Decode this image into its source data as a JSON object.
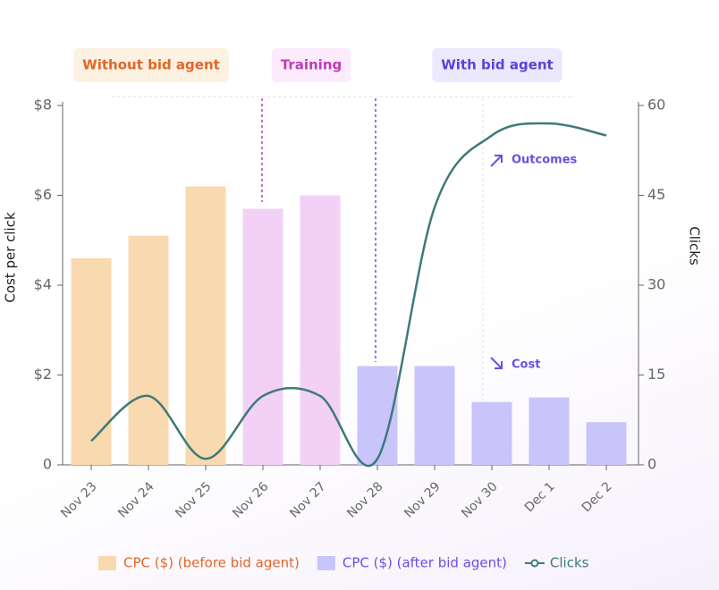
{
  "chart_data": {
    "type": "bar_line",
    "categories": [
      "Nov 23",
      "Nov 24",
      "Nov 25",
      "Nov 26",
      "Nov 27",
      "Nov 28",
      "Nov 29",
      "Nov 30",
      "Dec 1",
      "Dec 2"
    ],
    "phases": [
      {
        "label": "Without bid agent",
        "start": 0,
        "end": 2,
        "color": "#f8d9b0",
        "text_color": "#e0672a",
        "background": "#fdf1e1"
      },
      {
        "label": "Training",
        "start": 3,
        "end": 4,
        "color": "#f3d1f6",
        "text_color": "#c13bb5",
        "background": "#fcebfd"
      },
      {
        "label": "With bid agent",
        "start": 5,
        "end": 9,
        "color": "#c9c5fa",
        "text_color": "#5b43d6",
        "background": "#ebe9fd"
      }
    ],
    "series": [
      {
        "name": "CPC ($) (before bid agent)",
        "color": "#f8d9b0",
        "text_color": "#e0672a",
        "values": [
          4.6,
          5.1,
          6.2,
          5.7,
          6.0,
          null,
          null,
          null,
          null,
          null
        ]
      },
      {
        "name": "CPC ($) (after bid agent)",
        "color": "#c9c5fa",
        "text_color": "#6b4ee6",
        "values": [
          null,
          null,
          null,
          null,
          null,
          2.2,
          2.2,
          1.4,
          1.5,
          0.95
        ]
      },
      {
        "name": "Clicks",
        "color": "#3f7a7a",
        "axis": "y2",
        "values": [
          4,
          11.5,
          1,
          11.5,
          11.5,
          1,
          43,
          55,
          57,
          55
        ]
      }
    ],
    "ylabel": "Cost per click",
    "y2label": "Clicks",
    "ylim": [
      0,
      8
    ],
    "yticks": [
      0,
      {
        "value": 2,
        "label": "$2"
      },
      {
        "value": 4,
        "label": "$4"
      },
      {
        "value": 6,
        "label": "$6"
      },
      {
        "value": 8,
        "label": "$8"
      }
    ],
    "y2lim": [
      0,
      60
    ],
    "y2ticks": [
      0,
      15,
      30,
      45,
      60
    ],
    "annotations": [
      {
        "text": "Outcomes",
        "value": 55
      },
      {
        "text": "Cost",
        "value": 1.4
      }
    ]
  }
}
